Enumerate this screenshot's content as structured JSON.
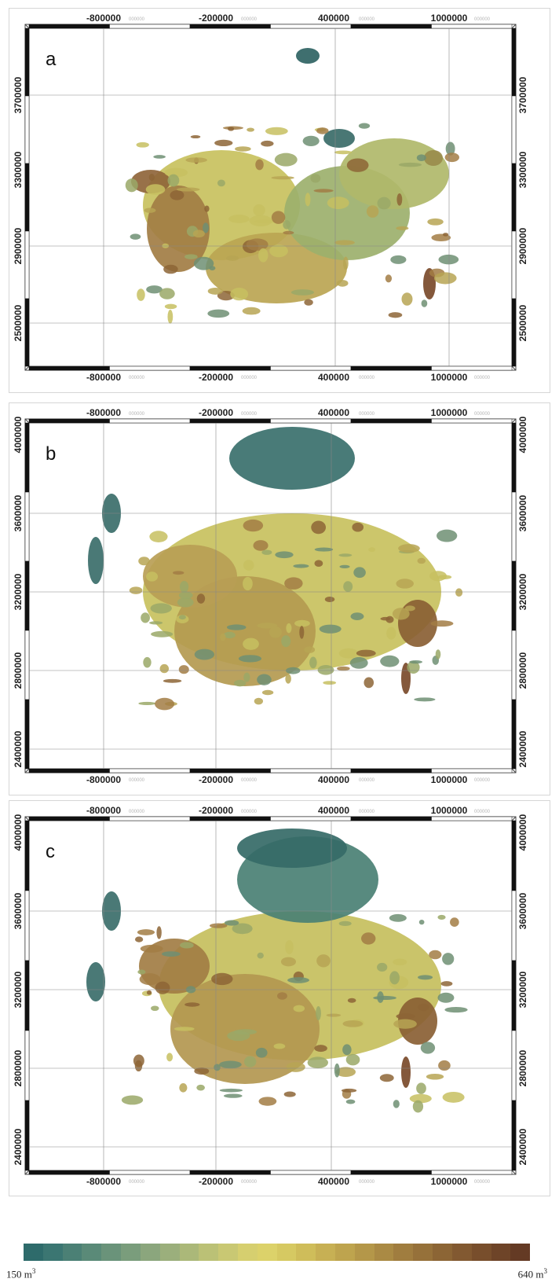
{
  "panels": [
    {
      "letter": "a",
      "x_ticks": [
        "-800000",
        "-200000",
        "400000",
        "1000000"
      ],
      "y_ticks": [
        "3700000",
        "3300000",
        "2900000",
        "2500000"
      ],
      "tick_suffix": "000000"
    },
    {
      "letter": "b",
      "x_ticks": [
        "-800000",
        "-200000",
        "400000",
        "1000000"
      ],
      "y_ticks": [
        "4000000",
        "3600000",
        "3200000",
        "2800000",
        "2400000"
      ],
      "tick_suffix": "000000"
    },
    {
      "letter": "c",
      "x_ticks": [
        "-800000",
        "-200000",
        "400000",
        "1000000"
      ],
      "y_ticks": [
        "4000000",
        "3600000",
        "3200000",
        "2800000",
        "2400000"
      ],
      "tick_suffix": "000000"
    }
  ],
  "legend": {
    "min_label": "150 m",
    "max_label": "640 m",
    "unit_exponent": "3",
    "color_steps": [
      "#2e6b6b",
      "#3b7672",
      "#4b8075",
      "#5a8a78",
      "#6a937a",
      "#7a9d7c",
      "#8ba67d",
      "#9baf7c",
      "#abb879",
      "#bbc176",
      "#c9c873",
      "#d6cf6f",
      "#dcd26a",
      "#d6c962",
      "#cfbd5a",
      "#c7b054",
      "#bea44e",
      "#b49749",
      "#aa8a44",
      "#a07d3f",
      "#96713a",
      "#8c6535",
      "#825931",
      "#784e2c",
      "#6e4428",
      "#643a24"
    ]
  }
}
